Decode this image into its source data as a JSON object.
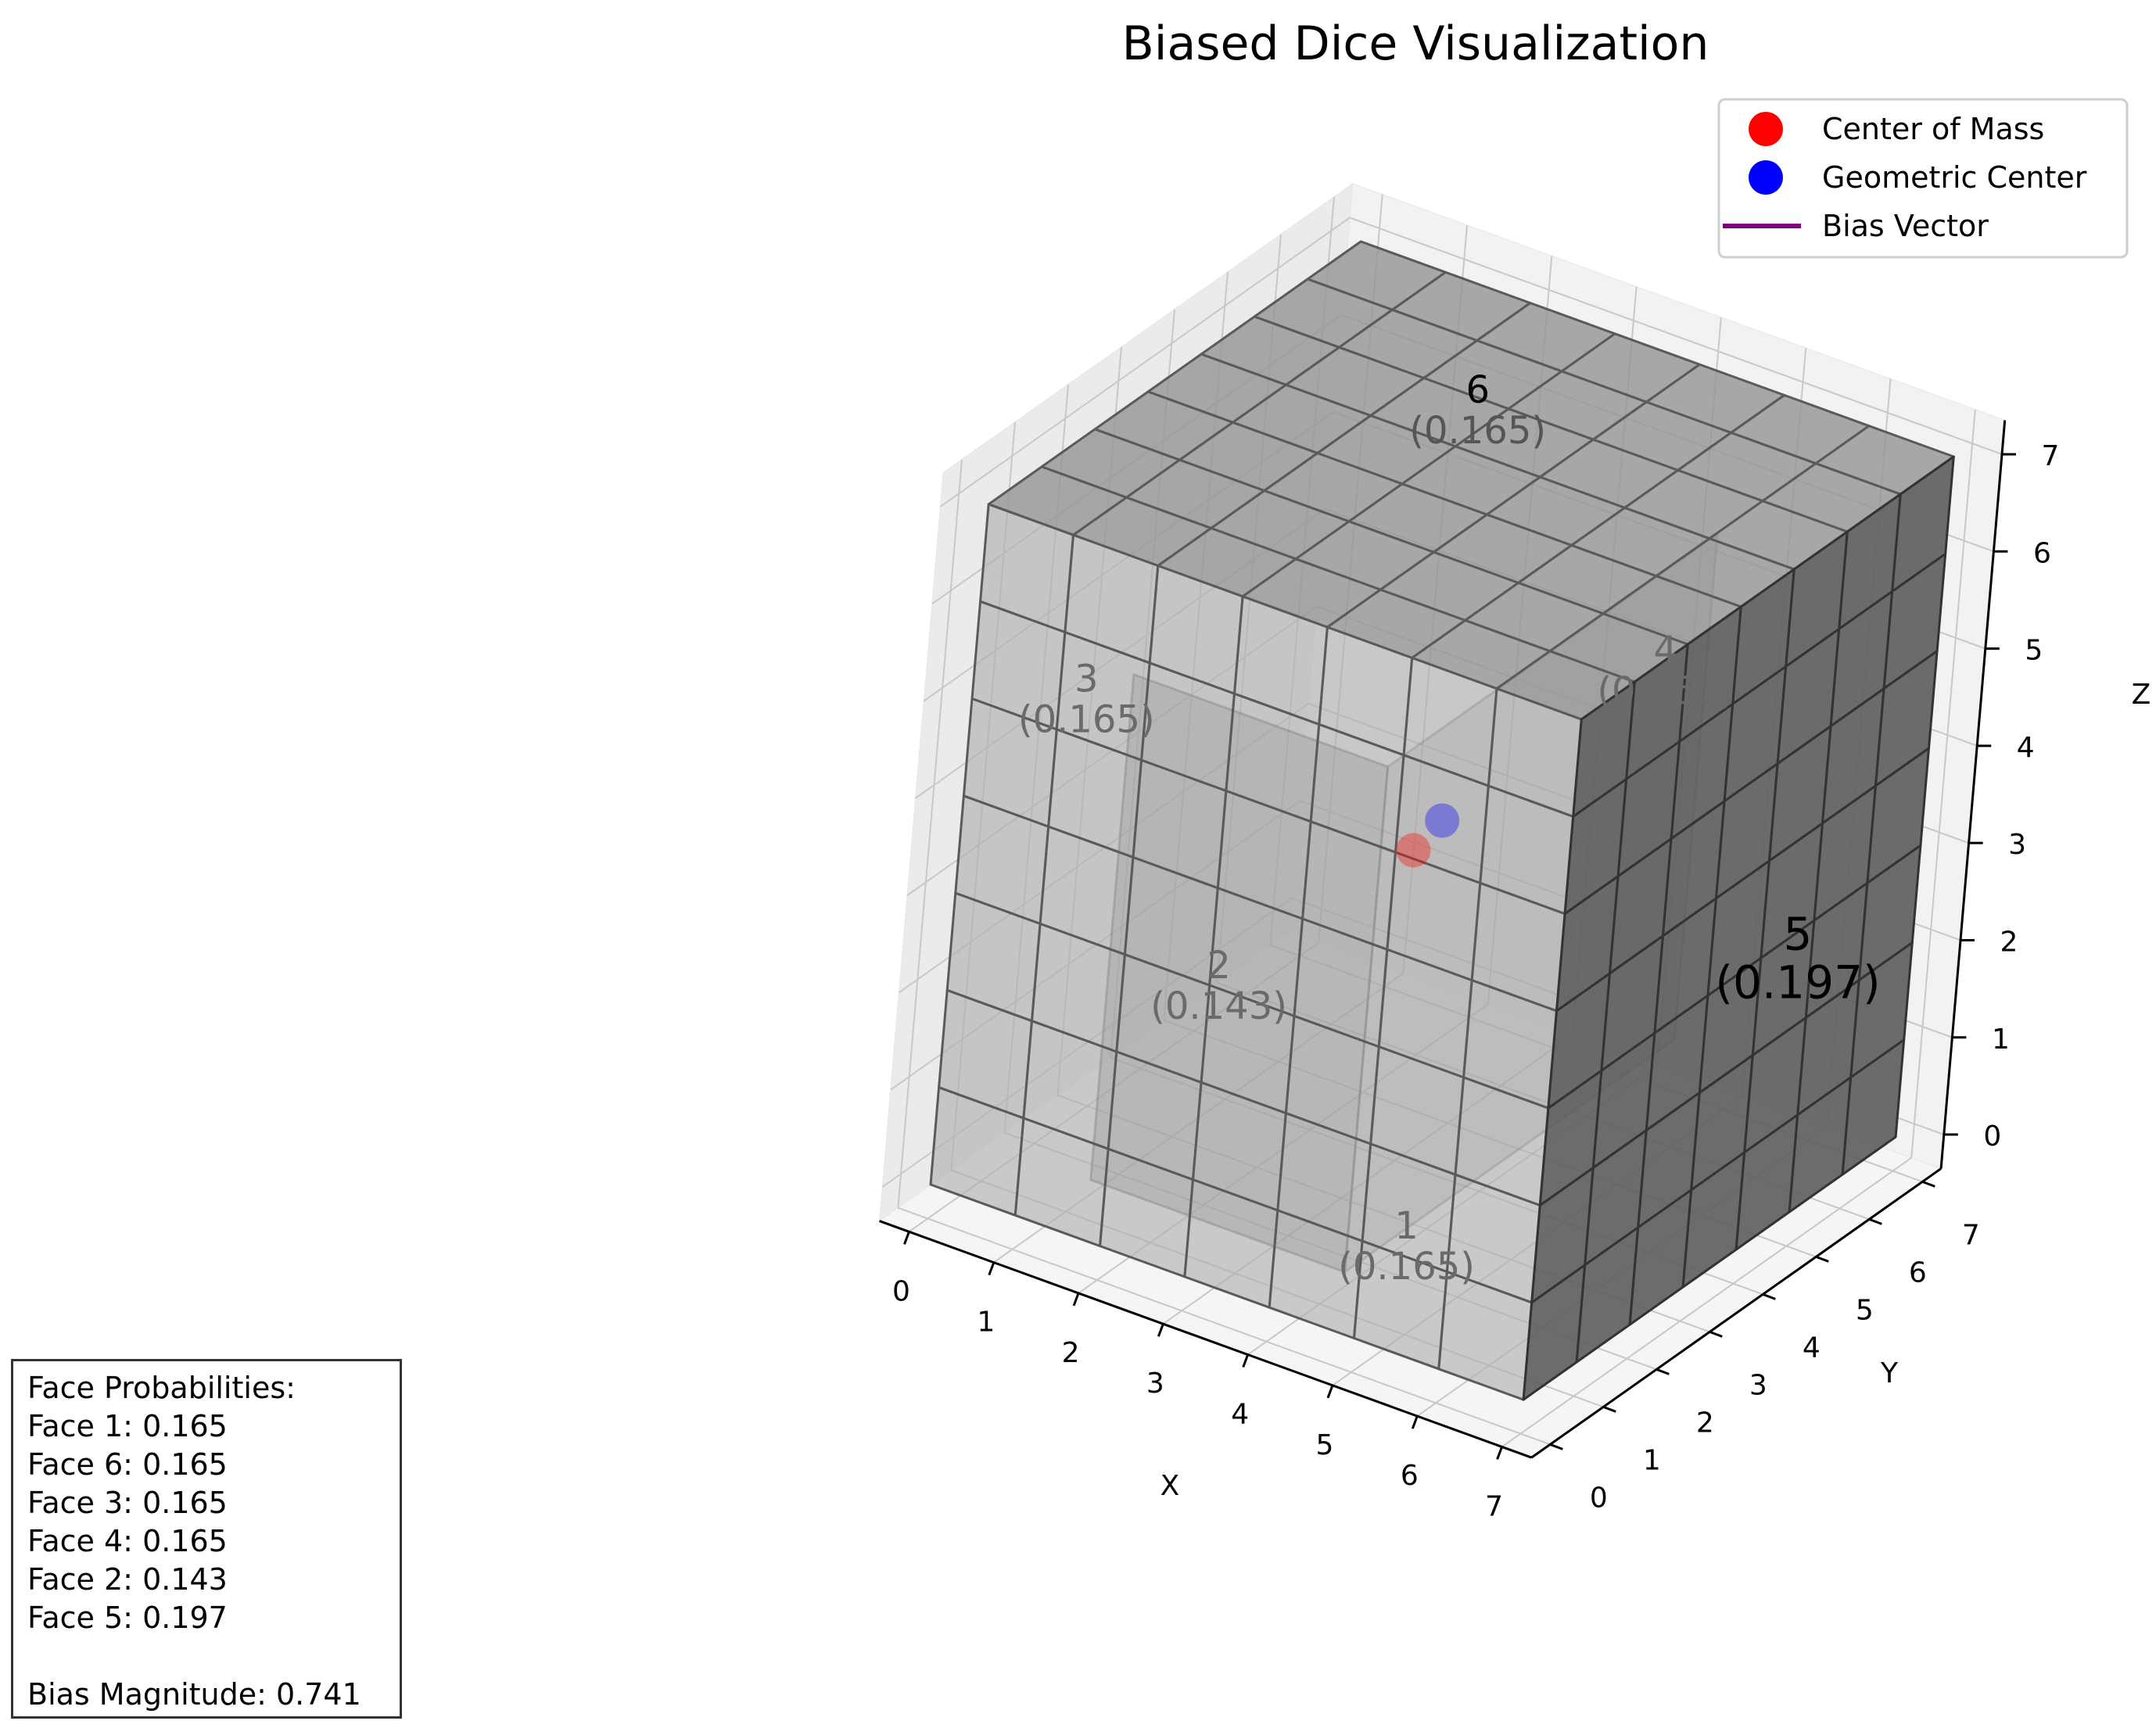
{
  "chart_data": {
    "type": "3d-voxel",
    "title": "Biased Dice Visualization",
    "xlabel": "X",
    "ylabel": "Y",
    "zlabel": "Z",
    "xlim": [
      0,
      7
    ],
    "ylim": [
      0,
      7
    ],
    "zlim": [
      0,
      7
    ],
    "x_ticks": [
      "0",
      "1",
      "2",
      "3",
      "4",
      "5",
      "6",
      "7"
    ],
    "y_ticks": [
      "0",
      "1",
      "2",
      "3",
      "4",
      "5",
      "6",
      "7"
    ],
    "z_ticks": [
      "0",
      "1",
      "2",
      "3",
      "4",
      "5",
      "6",
      "7"
    ],
    "grid": true,
    "legend_placement": "top-right",
    "legend": [
      {
        "label": "Center of Mass",
        "marker": "circle",
        "color": "#ff0000"
      },
      {
        "label": "Geometric Center",
        "marker": "circle",
        "color": "#0000ff"
      },
      {
        "label": "Bias Vector",
        "marker": "line",
        "color": "#800080"
      }
    ],
    "points": [
      {
        "name": "Center of Mass",
        "x": 3.2,
        "y": 3.5,
        "z": 3.1,
        "color": "#ff0000"
      },
      {
        "name": "Geometric Center",
        "x": 3.5,
        "y": 3.5,
        "z": 3.5,
        "color": "#0000ff"
      }
    ],
    "cube": {
      "min": 0,
      "max": 7,
      "divisions": 7,
      "color": "#808080"
    },
    "face_labels": [
      {
        "face": "6",
        "prob": "(0.165)",
        "x": 3.5,
        "y": 3.5,
        "z": 7.8
      },
      {
        "face": "5",
        "prob": "(0.197)",
        "x": 7.7,
        "y": 3.5,
        "z": 3.5
      },
      {
        "face": "4",
        "prob": "(0.165)",
        "x": 3.5,
        "y": 7.7,
        "z": 3.5
      },
      {
        "face": "3",
        "prob": "(0.165)",
        "x": -0.7,
        "y": 3.5,
        "z": 3.5
      },
      {
        "face": "2",
        "prob": "(0.143)",
        "x": 3.5,
        "y": -0.7,
        "z": 3.5
      },
      {
        "face": "1",
        "prob": "(0.165)",
        "x": 3.5,
        "y": 3.5,
        "z": -0.8
      }
    ]
  },
  "info": {
    "heading": "Face Probabilities:",
    "lines": [
      "Face 1: 0.165",
      "Face 6: 0.165",
      "Face 3: 0.165",
      "Face 4: 0.165",
      "Face 2: 0.143",
      "Face 5: 0.197"
    ],
    "bias": "Bias Magnitude: 0.741"
  }
}
